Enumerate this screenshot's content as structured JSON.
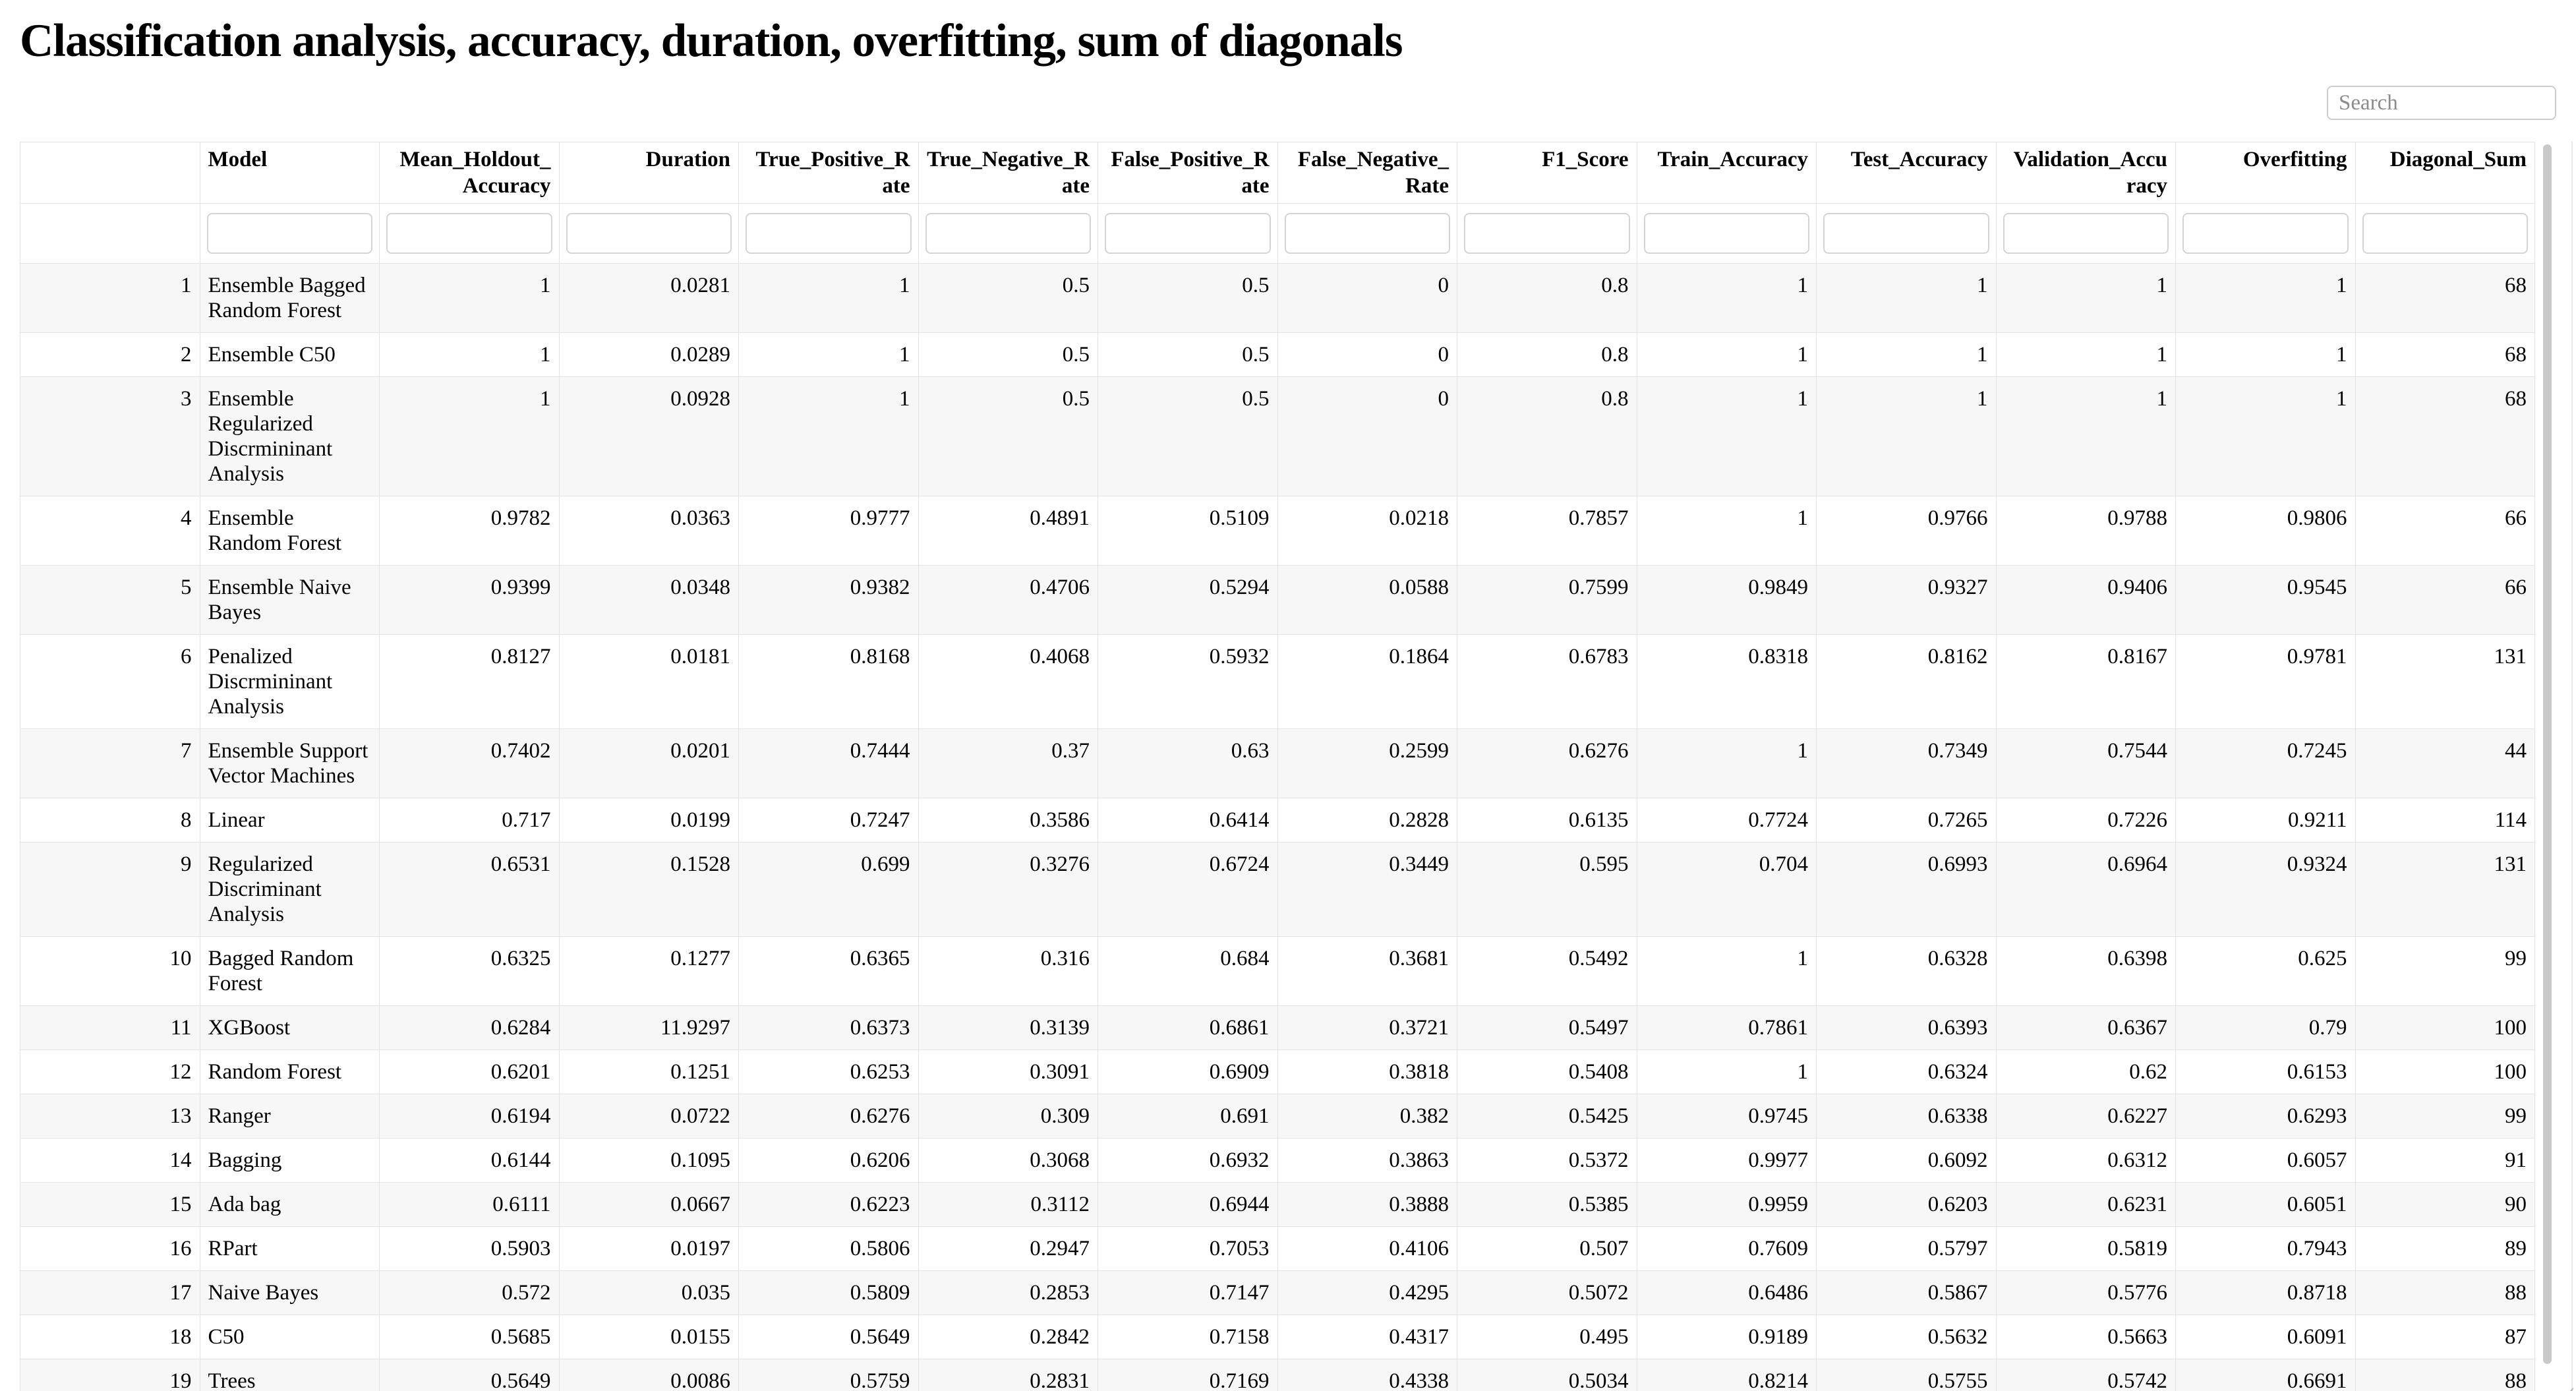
{
  "page_title": "Classification analysis, accuracy, duration, overfitting, sum of diagonals",
  "search": {
    "placeholder": "Search",
    "value": ""
  },
  "colors": {
    "row_stripe": "#f7f7f7",
    "cell_border": "#e3e3e3",
    "input_border": "#d4d4d4",
    "scrollbar_thumb": "#c9c9c9",
    "placeholder_text": "#8b8b8b"
  },
  "table": {
    "columns": [
      {
        "label": "",
        "align": "right"
      },
      {
        "label": "Model",
        "align": "left"
      },
      {
        "label": "Mean_Holdout_Accuracy",
        "align": "right"
      },
      {
        "label": "Duration",
        "align": "right"
      },
      {
        "label": "True_Positive_Rate",
        "align": "right"
      },
      {
        "label": "True_Negative_Rate",
        "align": "right"
      },
      {
        "label": "False_Positive_Rate",
        "align": "right"
      },
      {
        "label": "False_Negative_Rate",
        "align": "right"
      },
      {
        "label": "F1_Score",
        "align": "right"
      },
      {
        "label": "Train_Accuracy",
        "align": "right"
      },
      {
        "label": "Test_Accuracy",
        "align": "right"
      },
      {
        "label": "Validation_Accuracy",
        "align": "right"
      },
      {
        "label": "Overfitting",
        "align": "right"
      },
      {
        "label": "Diagonal_Sum",
        "align": "right"
      }
    ],
    "filter_inputs": {
      "value": "",
      "placeholder": ""
    },
    "rows": [
      {
        "index": "1",
        "model": "Ensemble Bagged Random Forest",
        "values": [
          "1",
          "0.0281",
          "1",
          "0.5",
          "0.5",
          "0",
          "0.8",
          "1",
          "1",
          "1",
          "1",
          "68"
        ]
      },
      {
        "index": "2",
        "model": "Ensemble C50",
        "values": [
          "1",
          "0.0289",
          "1",
          "0.5",
          "0.5",
          "0",
          "0.8",
          "1",
          "1",
          "1",
          "1",
          "68"
        ]
      },
      {
        "index": "3",
        "model": "Ensemble Regularized Discrmininant Analysis",
        "values": [
          "1",
          "0.0928",
          "1",
          "0.5",
          "0.5",
          "0",
          "0.8",
          "1",
          "1",
          "1",
          "1",
          "68"
        ]
      },
      {
        "index": "4",
        "model": "Ensemble Random Forest",
        "values": [
          "0.9782",
          "0.0363",
          "0.9777",
          "0.4891",
          "0.5109",
          "0.0218",
          "0.7857",
          "1",
          "0.9766",
          "0.9788",
          "0.9806",
          "66"
        ]
      },
      {
        "index": "5",
        "model": "Ensemble Naive Bayes",
        "values": [
          "0.9399",
          "0.0348",
          "0.9382",
          "0.4706",
          "0.5294",
          "0.0588",
          "0.7599",
          "0.9849",
          "0.9327",
          "0.9406",
          "0.9545",
          "66"
        ]
      },
      {
        "index": "6",
        "model": "Penalized Discrmininant Analysis",
        "values": [
          "0.8127",
          "0.0181",
          "0.8168",
          "0.4068",
          "0.5932",
          "0.1864",
          "0.6783",
          "0.8318",
          "0.8162",
          "0.8167",
          "0.9781",
          "131"
        ]
      },
      {
        "index": "7",
        "model": "Ensemble Support Vector Machines",
        "values": [
          "0.7402",
          "0.0201",
          "0.7444",
          "0.37",
          "0.63",
          "0.2599",
          "0.6276",
          "1",
          "0.7349",
          "0.7544",
          "0.7245",
          "44"
        ]
      },
      {
        "index": "8",
        "model": "Linear",
        "values": [
          "0.717",
          "0.0199",
          "0.7247",
          "0.3586",
          "0.6414",
          "0.2828",
          "0.6135",
          "0.7724",
          "0.7265",
          "0.7226",
          "0.9211",
          "114"
        ]
      },
      {
        "index": "9",
        "model": "Regularized Discriminant Analysis",
        "values": [
          "0.6531",
          "0.1528",
          "0.699",
          "0.3276",
          "0.6724",
          "0.3449",
          "0.595",
          "0.704",
          "0.6993",
          "0.6964",
          "0.9324",
          "131"
        ]
      },
      {
        "index": "10",
        "model": "Bagged Random Forest",
        "values": [
          "0.6325",
          "0.1277",
          "0.6365",
          "0.316",
          "0.684",
          "0.3681",
          "0.5492",
          "1",
          "0.6328",
          "0.6398",
          "0.625",
          "99"
        ]
      },
      {
        "index": "11",
        "model": "XGBoost",
        "values": [
          "0.6284",
          "11.9297",
          "0.6373",
          "0.3139",
          "0.6861",
          "0.3721",
          "0.5497",
          "0.7861",
          "0.6393",
          "0.6367",
          "0.79",
          "100"
        ]
      },
      {
        "index": "12",
        "model": "Random Forest",
        "values": [
          "0.6201",
          "0.1251",
          "0.6253",
          "0.3091",
          "0.6909",
          "0.3818",
          "0.5408",
          "1",
          "0.6324",
          "0.62",
          "0.6153",
          "100"
        ]
      },
      {
        "index": "13",
        "model": "Ranger",
        "values": [
          "0.6194",
          "0.0722",
          "0.6276",
          "0.309",
          "0.691",
          "0.382",
          "0.5425",
          "0.9745",
          "0.6338",
          "0.6227",
          "0.6293",
          "99"
        ]
      },
      {
        "index": "14",
        "model": "Bagging",
        "values": [
          "0.6144",
          "0.1095",
          "0.6206",
          "0.3068",
          "0.6932",
          "0.3863",
          "0.5372",
          "0.9977",
          "0.6092",
          "0.6312",
          "0.6057",
          "91"
        ]
      },
      {
        "index": "15",
        "model": "Ada bag",
        "values": [
          "0.6111",
          "0.0667",
          "0.6223",
          "0.3112",
          "0.6944",
          "0.3888",
          "0.5385",
          "0.9959",
          "0.6203",
          "0.6231",
          "0.6051",
          "90"
        ]
      },
      {
        "index": "16",
        "model": "RPart",
        "values": [
          "0.5903",
          "0.0197",
          "0.5806",
          "0.2947",
          "0.7053",
          "0.4106",
          "0.507",
          "0.7609",
          "0.5797",
          "0.5819",
          "0.7943",
          "89"
        ]
      },
      {
        "index": "17",
        "model": "Naive Bayes",
        "values": [
          "0.572",
          "0.035",
          "0.5809",
          "0.2853",
          "0.7147",
          "0.4295",
          "0.5072",
          "0.6486",
          "0.5867",
          "0.5776",
          "0.8718",
          "88"
        ]
      },
      {
        "index": "18",
        "model": "C50",
        "values": [
          "0.5685",
          "0.0155",
          "0.5649",
          "0.2842",
          "0.7158",
          "0.4317",
          "0.495",
          "0.9189",
          "0.5632",
          "0.5663",
          "0.6091",
          "87"
        ]
      },
      {
        "index": "19",
        "model": "Trees",
        "values": [
          "0.5649",
          "0.0086",
          "0.5759",
          "0.2831",
          "0.7169",
          "0.4338",
          "0.5034",
          "0.8214",
          "0.5755",
          "0.5742",
          "0.6691",
          "88"
        ]
      }
    ]
  }
}
